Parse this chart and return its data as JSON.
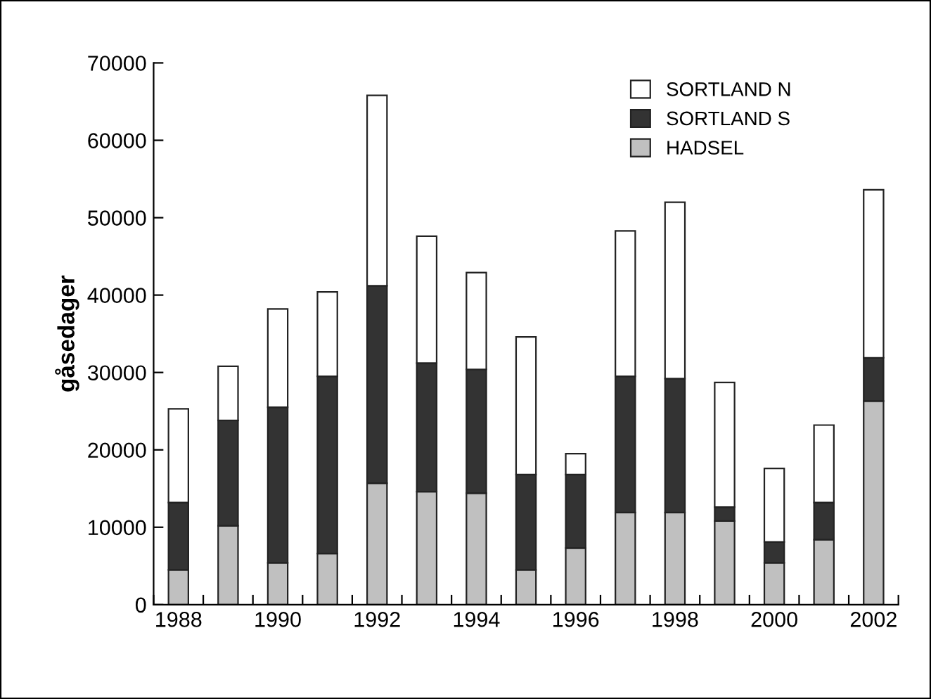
{
  "chart_data": {
    "type": "bar",
    "stacked": true,
    "ylabel": "gåsedager",
    "categories": [
      "1988",
      null,
      "1990",
      null,
      "1992",
      null,
      "1994",
      null,
      "1996",
      null,
      "1998",
      null,
      "2000",
      null,
      "2002"
    ],
    "series": [
      {
        "name": "HADSEL",
        "color": "#c0c0c0",
        "values": [
          4500,
          10200,
          5400,
          6600,
          15700,
          14600,
          14400,
          4500,
          7300,
          11900,
          11900,
          10800,
          5400,
          8400,
          26300
        ]
      },
      {
        "name": "SORTLAND S",
        "color": "#333333",
        "values": [
          8700,
          13600,
          20100,
          22900,
          25500,
          16600,
          16000,
          12300,
          9500,
          17600,
          17300,
          1800,
          2700,
          4800,
          5600
        ]
      },
      {
        "name": "SORTLAND N",
        "color": "#ffffff",
        "values": [
          12100,
          7000,
          12700,
          10900,
          24600,
          16400,
          12500,
          17800,
          2700,
          18800,
          22800,
          16100,
          9500,
          10000,
          21700
        ]
      }
    ],
    "ylim": [
      0,
      70000
    ],
    "yticks": [
      0,
      10000,
      20000,
      30000,
      40000,
      50000,
      60000,
      70000
    ],
    "grid": false,
    "legend": "top right"
  }
}
